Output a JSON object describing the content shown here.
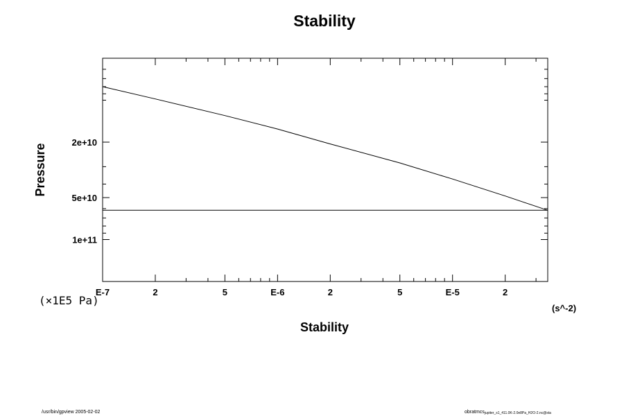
{
  "chart_data": {
    "type": "line",
    "title": "Stability",
    "xlabel": "Stability",
    "ylabel": "Pressure",
    "x_unit": "(s^-2)",
    "y_unit": "(×1E5 Pa)",
    "x_scale": "log",
    "y_scale": "log",
    "y_inverted": true,
    "xlim": [
      1e-07,
      3.5e-05
    ],
    "ylim": [
      5000000000.0,
      200000000000.0
    ],
    "grid": false,
    "x_ticks": [
      {
        "value": 1e-07,
        "label": "E-7"
      },
      {
        "value": 2e-07,
        "label": "2"
      },
      {
        "value": 5e-07,
        "label": "5"
      },
      {
        "value": 1e-06,
        "label": "E-6"
      },
      {
        "value": 2e-06,
        "label": "2"
      },
      {
        "value": 5e-06,
        "label": "5"
      },
      {
        "value": 1e-05,
        "label": "E-5"
      },
      {
        "value": 2e-05,
        "label": "2"
      }
    ],
    "y_ticks": [
      {
        "value": 20000000000.0,
        "label": "2e+10"
      },
      {
        "value": 50000000000.0,
        "label": "5e+10"
      },
      {
        "value": 100000000000.0,
        "label": "1e+11"
      }
    ],
    "series": [
      {
        "x": [
          1e-07,
          2e-07,
          5e-07,
          1e-06,
          2e-06,
          5e-06,
          1e-05,
          2e-05,
          3.5e-05
        ],
        "y": [
          8000000000.0,
          9800000000.0,
          12900000000.0,
          16100000000.0,
          20600000000.0,
          28200000000.0,
          36800000000.0,
          48700000000.0,
          61700000000.0
        ]
      },
      {
        "x": [
          1e-07,
          3.5e-05
        ],
        "y": [
          61700000000.0,
          61700000000.0
        ]
      }
    ]
  },
  "footer": {
    "left": "/usr/bin/gpview 2005-02-02",
    "right_main": "obratmcs",
    "right_sub": "jupiter_s1_411.0K-2.0e8Pa_H2O-2.nc@sta"
  }
}
